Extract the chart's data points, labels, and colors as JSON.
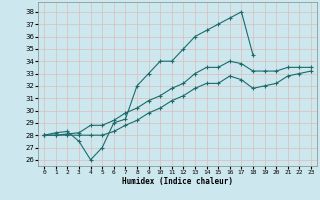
{
  "xlabel": "Humidex (Indice chaleur)",
  "bg_color": "#cce8ee",
  "grid_color": "#ddbbbb",
  "line_color": "#1a6b6b",
  "xlim": [
    -0.5,
    23.5
  ],
  "ylim": [
    25.5,
    38.8
  ],
  "xticks": [
    0,
    1,
    2,
    3,
    4,
    5,
    6,
    7,
    8,
    9,
    10,
    11,
    12,
    13,
    14,
    15,
    16,
    17,
    18,
    19,
    20,
    21,
    22,
    23
  ],
  "yticks": [
    26,
    27,
    28,
    29,
    30,
    31,
    32,
    33,
    34,
    35,
    36,
    37,
    38
  ],
  "series1_x": [
    0,
    1,
    2,
    3,
    4,
    5,
    6,
    7,
    8,
    9,
    10,
    11,
    12,
    13,
    14,
    15,
    16,
    17,
    18
  ],
  "series1_y": [
    28.0,
    28.2,
    28.3,
    27.5,
    26.0,
    27.0,
    29.0,
    29.3,
    32.0,
    33.0,
    34.0,
    34.0,
    35.0,
    36.0,
    36.5,
    37.0,
    37.5,
    38.0,
    34.5
  ],
  "series2_x": [
    0,
    1,
    2,
    3,
    4,
    5,
    6,
    7,
    8,
    9,
    10,
    11,
    12,
    13,
    14,
    15,
    16,
    17,
    18,
    19,
    20,
    21,
    22,
    23
  ],
  "series2_y": [
    28.0,
    28.0,
    28.1,
    28.2,
    28.8,
    28.8,
    29.2,
    29.8,
    30.2,
    30.8,
    31.2,
    31.8,
    32.2,
    33.0,
    33.5,
    33.5,
    34.0,
    33.8,
    33.2,
    33.2,
    33.2,
    33.5,
    33.5,
    33.5
  ],
  "series3_x": [
    0,
    1,
    2,
    3,
    4,
    5,
    6,
    7,
    8,
    9,
    10,
    11,
    12,
    13,
    14,
    15,
    16,
    17,
    18,
    19,
    20,
    21,
    22,
    23
  ],
  "series3_y": [
    28.0,
    28.0,
    28.0,
    28.0,
    28.0,
    28.0,
    28.3,
    28.8,
    29.2,
    29.8,
    30.2,
    30.8,
    31.2,
    31.8,
    32.2,
    32.2,
    32.8,
    32.5,
    31.8,
    32.0,
    32.2,
    32.8,
    33.0,
    33.2
  ]
}
